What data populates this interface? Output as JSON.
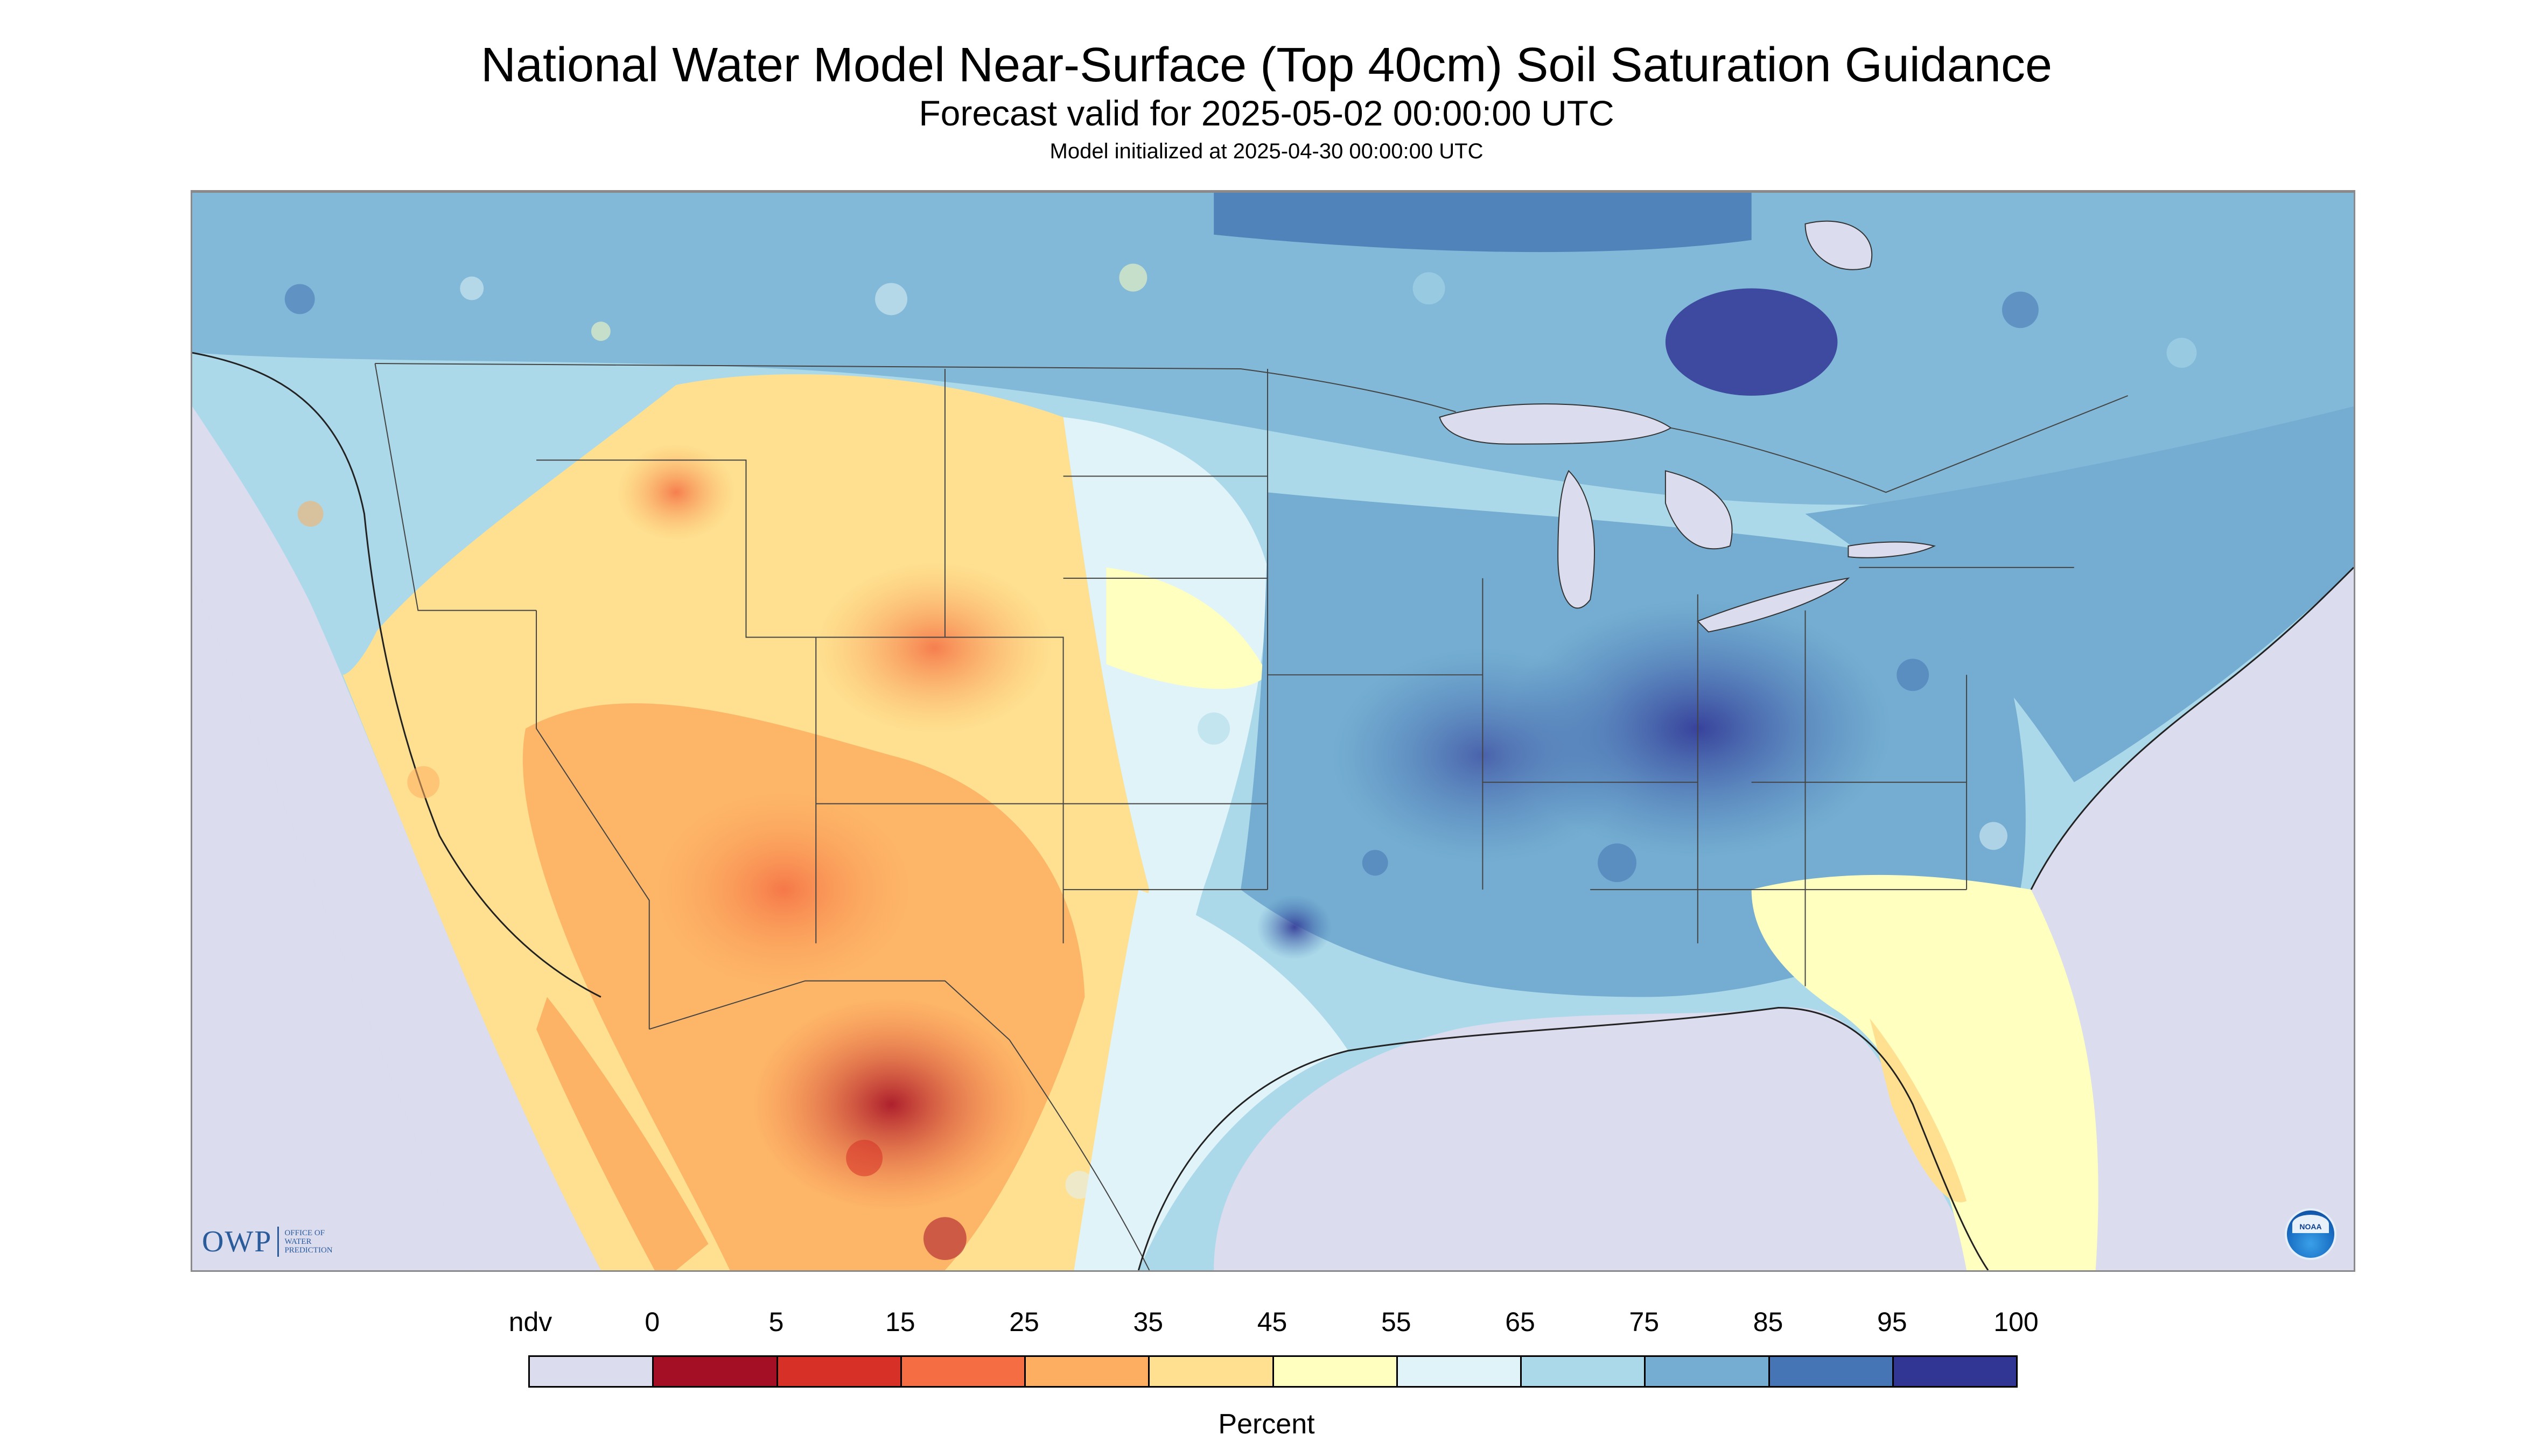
{
  "header": {
    "title": "National Water Model Near-Surface (Top 40cm) Soil Saturation Guidance",
    "forecast_valid": "Forecast valid for 2025-05-02 00:00:00 UTC",
    "model_initialized": "Model initialized at 2025-04-30 00:00:00 UTC"
  },
  "logos": {
    "owp_mark": "OWP",
    "owp_line1": "OFFICE OF",
    "owp_line2": "WATER",
    "owp_line3": "PREDICTION",
    "noaa_mark": "NOAA"
  },
  "legend": {
    "unit_label": "Percent",
    "ticks": [
      "ndv",
      "0",
      "5",
      "15",
      "25",
      "35",
      "45",
      "55",
      "65",
      "75",
      "85",
      "95",
      "100"
    ],
    "bins": [
      {
        "label": "ndv",
        "color": "#dcdcef"
      },
      {
        "label": "0-5",
        "color": "#a50f26"
      },
      {
        "label": "5-15",
        "color": "#d73027"
      },
      {
        "label": "15-25",
        "color": "#f46d43"
      },
      {
        "label": "25-35",
        "color": "#fdae61"
      },
      {
        "label": "35-45",
        "color": "#fee090"
      },
      {
        "label": "45-55",
        "color": "#ffffbf"
      },
      {
        "label": "55-65",
        "color": "#e0f3f8"
      },
      {
        "label": "65-75",
        "color": "#abd9e9"
      },
      {
        "label": "75-85",
        "color": "#74add1"
      },
      {
        "label": "85-95",
        "color": "#4575b4"
      },
      {
        "label": "95-100",
        "color": "#313695"
      }
    ]
  },
  "map": {
    "nodata_color": "#dcdcef",
    "water_color": "#dcdcef"
  }
}
